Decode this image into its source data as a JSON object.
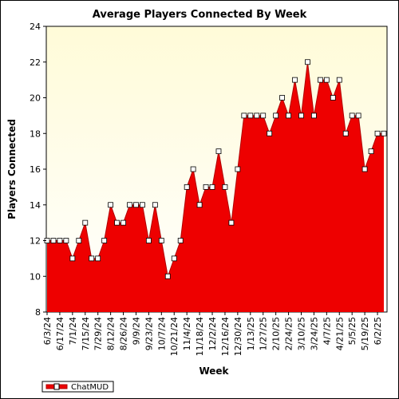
{
  "chart_data": {
    "type": "area",
    "title": "Average Players Connected By Week",
    "xlabel": "Week",
    "ylabel": "Players Connected",
    "ylim": [
      8,
      24
    ],
    "yticks": [
      8,
      10,
      12,
      14,
      16,
      18,
      20,
      22,
      24
    ],
    "grid": false,
    "legend_position": "bottom-left",
    "colors": {
      "fill": "#ee0000",
      "line": "#b00000",
      "marker_face": "#ffffff",
      "plot_bg_top": "#fffbd8",
      "plot_bg_bottom": "#ffffff"
    },
    "x_tick_labels": [
      "6/3/24",
      "6/17/24",
      "7/1/24",
      "7/15/24",
      "7/29/24",
      "8/12/24",
      "8/26/24",
      "9/9/24",
      "9/23/24",
      "10/7/24",
      "10/21/24",
      "11/4/24",
      "11/18/24",
      "12/2/24",
      "12/16/24",
      "12/30/24",
      "1/13/25",
      "1/27/25",
      "2/10/25",
      "2/24/25",
      "3/10/25",
      "3/24/25",
      "4/7/25",
      "4/21/25",
      "5/5/25",
      "5/19/25",
      "6/2/25"
    ],
    "series": [
      {
        "name": "ChatMUD",
        "x": [
          "6/3/24",
          "6/10/24",
          "6/17/24",
          "6/24/24",
          "7/1/24",
          "7/8/24",
          "7/15/24",
          "7/22/24",
          "7/29/24",
          "8/5/24",
          "8/12/24",
          "8/19/24",
          "8/26/24",
          "9/2/24",
          "9/9/24",
          "9/16/24",
          "9/23/24",
          "9/30/24",
          "10/7/24",
          "10/14/24",
          "10/21/24",
          "10/28/24",
          "11/4/24",
          "11/11/24",
          "11/18/24",
          "11/25/24",
          "12/2/24",
          "12/9/24",
          "12/16/24",
          "12/23/24",
          "12/30/24",
          "1/6/25",
          "1/13/25",
          "1/20/25",
          "1/27/25",
          "2/3/25",
          "2/10/25",
          "2/17/25",
          "2/24/25",
          "3/3/25",
          "3/10/25",
          "3/17/25",
          "3/24/25",
          "3/31/25",
          "4/7/25",
          "4/14/25",
          "4/21/25",
          "4/28/25",
          "5/5/25",
          "5/12/25",
          "5/19/25",
          "5/26/25",
          "6/2/25",
          "6/9/25"
        ],
        "values": [
          12,
          12,
          12,
          12,
          11,
          12,
          13,
          11,
          11,
          12,
          14,
          13,
          13,
          14,
          14,
          14,
          12,
          14,
          12,
          10,
          11,
          12,
          15,
          16,
          14,
          15,
          15,
          17,
          15,
          13,
          16,
          19,
          19,
          19,
          19,
          18,
          19,
          20,
          19,
          21,
          19,
          22,
          19,
          21,
          21,
          20,
          21,
          18,
          19,
          19,
          16,
          17,
          18,
          18
        ]
      }
    ]
  }
}
